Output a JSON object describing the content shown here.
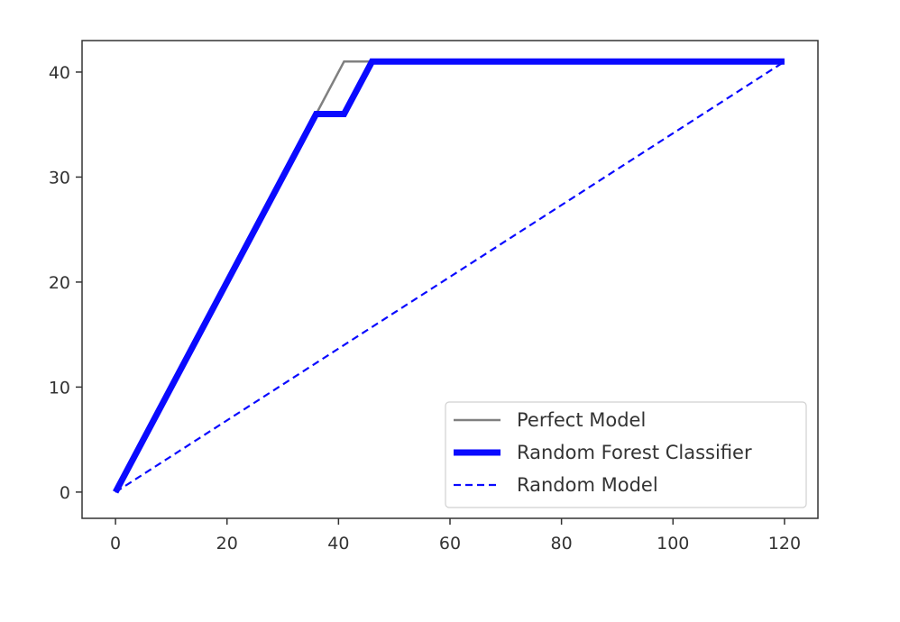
{
  "chart_data": {
    "type": "line",
    "title": "",
    "xlabel": "",
    "ylabel": "",
    "xlim": [
      -6,
      126
    ],
    "ylim": [
      -2.5,
      43
    ],
    "xticks": [
      0,
      20,
      40,
      60,
      80,
      100,
      120
    ],
    "yticks": [
      0,
      10,
      20,
      30,
      40
    ],
    "grid": false,
    "legend_position": "lower-right",
    "series": [
      {
        "name": "Perfect Model",
        "color": "#808080",
        "style": "solid",
        "points": [
          [
            0,
            0
          ],
          [
            36,
            36
          ],
          [
            41,
            41
          ],
          [
            120,
            41
          ]
        ]
      },
      {
        "name": "Random Forest Classifier",
        "color": "#0a0aff",
        "style": "thick",
        "points": [
          [
            0,
            0
          ],
          [
            36,
            36
          ],
          [
            41,
            36
          ],
          [
            46,
            41
          ],
          [
            120,
            41
          ]
        ]
      },
      {
        "name": "Random Model",
        "color": "#0a0aff",
        "style": "dashed",
        "points": [
          [
            0,
            0
          ],
          [
            120,
            41
          ]
        ]
      }
    ]
  }
}
